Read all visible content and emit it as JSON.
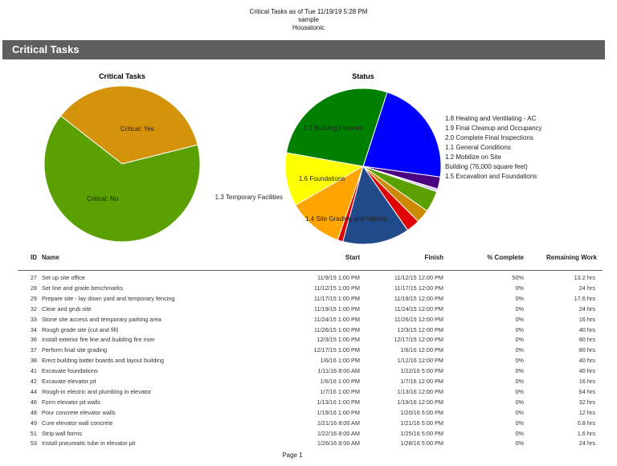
{
  "header": {
    "line1": "Critical Tasks  as of Tue 11/19/19 5:28 PM",
    "line2": "sample",
    "line3": "Housatonic"
  },
  "section_title": "Critical Tasks",
  "chart_data": [
    {
      "type": "pie",
      "title": "Critical Tasks",
      "slices": [
        {
          "label": "Critical: Yes",
          "value": 35.5,
          "color": "#d4930a"
        },
        {
          "label": "Critical: No",
          "value": 64.5,
          "color": "#5aa000"
        }
      ]
    },
    {
      "type": "pie",
      "title": "Status",
      "slices": [
        {
          "label": "1.8  Heating and Ventilating - AC",
          "value": 22.2,
          "color": "#0000ff"
        },
        {
          "label": "1.9  Final Cleanup and Occupancy",
          "value": 2.5,
          "color": "#4b0082"
        },
        {
          "label": "2.0  Complete Final Inspections",
          "value": 0.6,
          "color": "#d8c8ff"
        },
        {
          "label": "1.1  General Conditions",
          "value": 4.4,
          "color": "#5aa000"
        },
        {
          "label": "1.2  Mobilize on Site",
          "value": 2.8,
          "color": "#cc8a00"
        },
        {
          "label": "Building (76,000 square feet)",
          "value": 2.8,
          "color": "#e00000"
        },
        {
          "label": "1.5  Excavation and Foundations",
          "value": 13.9,
          "color": "#214a8a"
        },
        {
          "label": "",
          "value": 1.1,
          "color": "#e00000"
        },
        {
          "label": "1.4  Site Grading and Utilities",
          "value": 11.4,
          "color": "#ffa500"
        },
        {
          "label": "1.6  Foundations",
          "value": 11.1,
          "color": "#ffff00"
        },
        {
          "label": "1.3 Temporary Facilities",
          "value": 0,
          "color": "#ffff00"
        },
        {
          "label": "1.7 Building Finishes",
          "value": 27.2,
          "color": "#008000"
        }
      ]
    }
  ],
  "table": {
    "columns": [
      "ID",
      "Name",
      "Start",
      "Finish",
      "% Complete",
      "Remaining Work"
    ],
    "rows": [
      [
        "27",
        "Set up site office",
        "11/9/15 1:00 PM",
        "11/12/15 12:00 PM",
        "50%",
        "13.2 hrs"
      ],
      [
        "28",
        "Set line and grade benchmarks",
        "11/12/15 1:00 PM",
        "11/17/15 12:00 PM",
        "0%",
        "24 hrs"
      ],
      [
        "29",
        "Prepare site - lay down yard and temporary fencing",
        "11/17/15 1:00 PM",
        "11/19/15 12:00 PM",
        "0%",
        "17.6 hrs"
      ],
      [
        "32",
        "Clear and grub site",
        "11/19/15 1:00 PM",
        "11/24/15 12:00 PM",
        "0%",
        "24 hrs"
      ],
      [
        "33",
        "Stone site access and temporary parking area",
        "11/24/15 1:00 PM",
        "11/26/15 12:00 PM",
        "0%",
        "16 hrs"
      ],
      [
        "34",
        "Rough grade site (cut and fill)",
        "11/26/15 1:00 PM",
        "12/3/15 12:00 PM",
        "0%",
        "40 hrs"
      ],
      [
        "36",
        "Install exterior fire line and building fire riser",
        "12/3/15 1:00 PM",
        "12/17/15 12:00 PM",
        "0%",
        "80 hrs"
      ],
      [
        "37",
        "Perform final site grading",
        "12/17/15 1:00 PM",
        "1/6/16 12:00 PM",
        "0%",
        "80 hrs"
      ],
      [
        "38",
        "Erect building batter boards and layout building",
        "1/6/16 1:00 PM",
        "1/12/16 12:00 PM",
        "0%",
        "40 hrs"
      ],
      [
        "41",
        "Excavate foundations",
        "1/11/16 8:00 AM",
        "1/22/16 5:00 PM",
        "0%",
        "40 hrs"
      ],
      [
        "42",
        "Excavate elevator pit",
        "1/6/16 1:00 PM",
        "1/7/16 12:00 PM",
        "0%",
        "16 hrs"
      ],
      [
        "44",
        "Rough-in electric and plumbing in elevator",
        "1/7/16 1:00 PM",
        "1/13/16 12:00 PM",
        "0%",
        "64 hrs"
      ],
      [
        "46",
        "Form elevator pit walls",
        "1/13/16 1:00 PM",
        "1/19/16 12:00 PM",
        "0%",
        "32 hrs"
      ],
      [
        "48",
        "Pour concrete elevator walls",
        "1/19/16 1:00 PM",
        "1/20/16 5:00 PM",
        "0%",
        "12 hrs"
      ],
      [
        "49",
        "Cure elevator wall concrete",
        "1/21/16 8:00 AM",
        "1/21/16 5:00 PM",
        "0%",
        "0.8 hrs"
      ],
      [
        "51",
        "Strip wall forms",
        "1/22/16 8:00 AM",
        "1/25/16 5:00 PM",
        "0%",
        "1.6 hrs"
      ],
      [
        "53",
        "Install pneumatic tube in elevator pit",
        "1/26/16 8:00 AM",
        "1/28/16 5:00 PM",
        "0%",
        "24 hrs"
      ]
    ]
  },
  "footer": "Page 1"
}
